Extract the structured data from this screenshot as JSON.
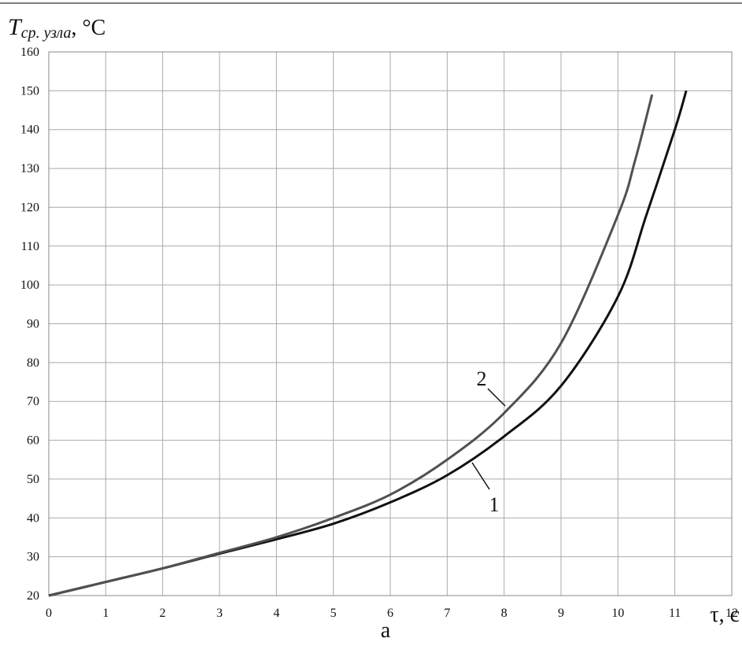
{
  "chart_data": {
    "type": "line",
    "y_label": {
      "symbol": "T",
      "subscript": "ср. узла",
      "unit": ", °C"
    },
    "x_label": "τ, с",
    "caption": "а",
    "xlim": [
      0,
      12
    ],
    "xticks": [
      0,
      1,
      2,
      3,
      4,
      5,
      6,
      7,
      8,
      9,
      10,
      11,
      12
    ],
    "ylim": [
      20,
      160
    ],
    "yticks": [
      20,
      30,
      40,
      50,
      60,
      70,
      80,
      90,
      100,
      110,
      120,
      130,
      140,
      150,
      160
    ],
    "grid": true,
    "series": [
      {
        "name": "1",
        "color": "#111111",
        "x": [
          0,
          1,
          2,
          3,
          4,
          5,
          6,
          7,
          8,
          9,
          10,
          10.5,
          11,
          11.2
        ],
        "values": [
          20,
          23.5,
          27,
          30.8,
          34.5,
          38.5,
          44,
          51,
          61,
          74,
          97,
          118,
          140,
          150
        ]
      },
      {
        "name": "2",
        "color": "#505050",
        "x": [
          0,
          1,
          2,
          3,
          4,
          5,
          6,
          7,
          8,
          9,
          10,
          10.3,
          10.6
        ],
        "values": [
          20,
          23.5,
          27,
          31,
          35,
          40,
          46,
          55,
          67,
          85,
          118,
          132,
          149
        ]
      }
    ]
  }
}
